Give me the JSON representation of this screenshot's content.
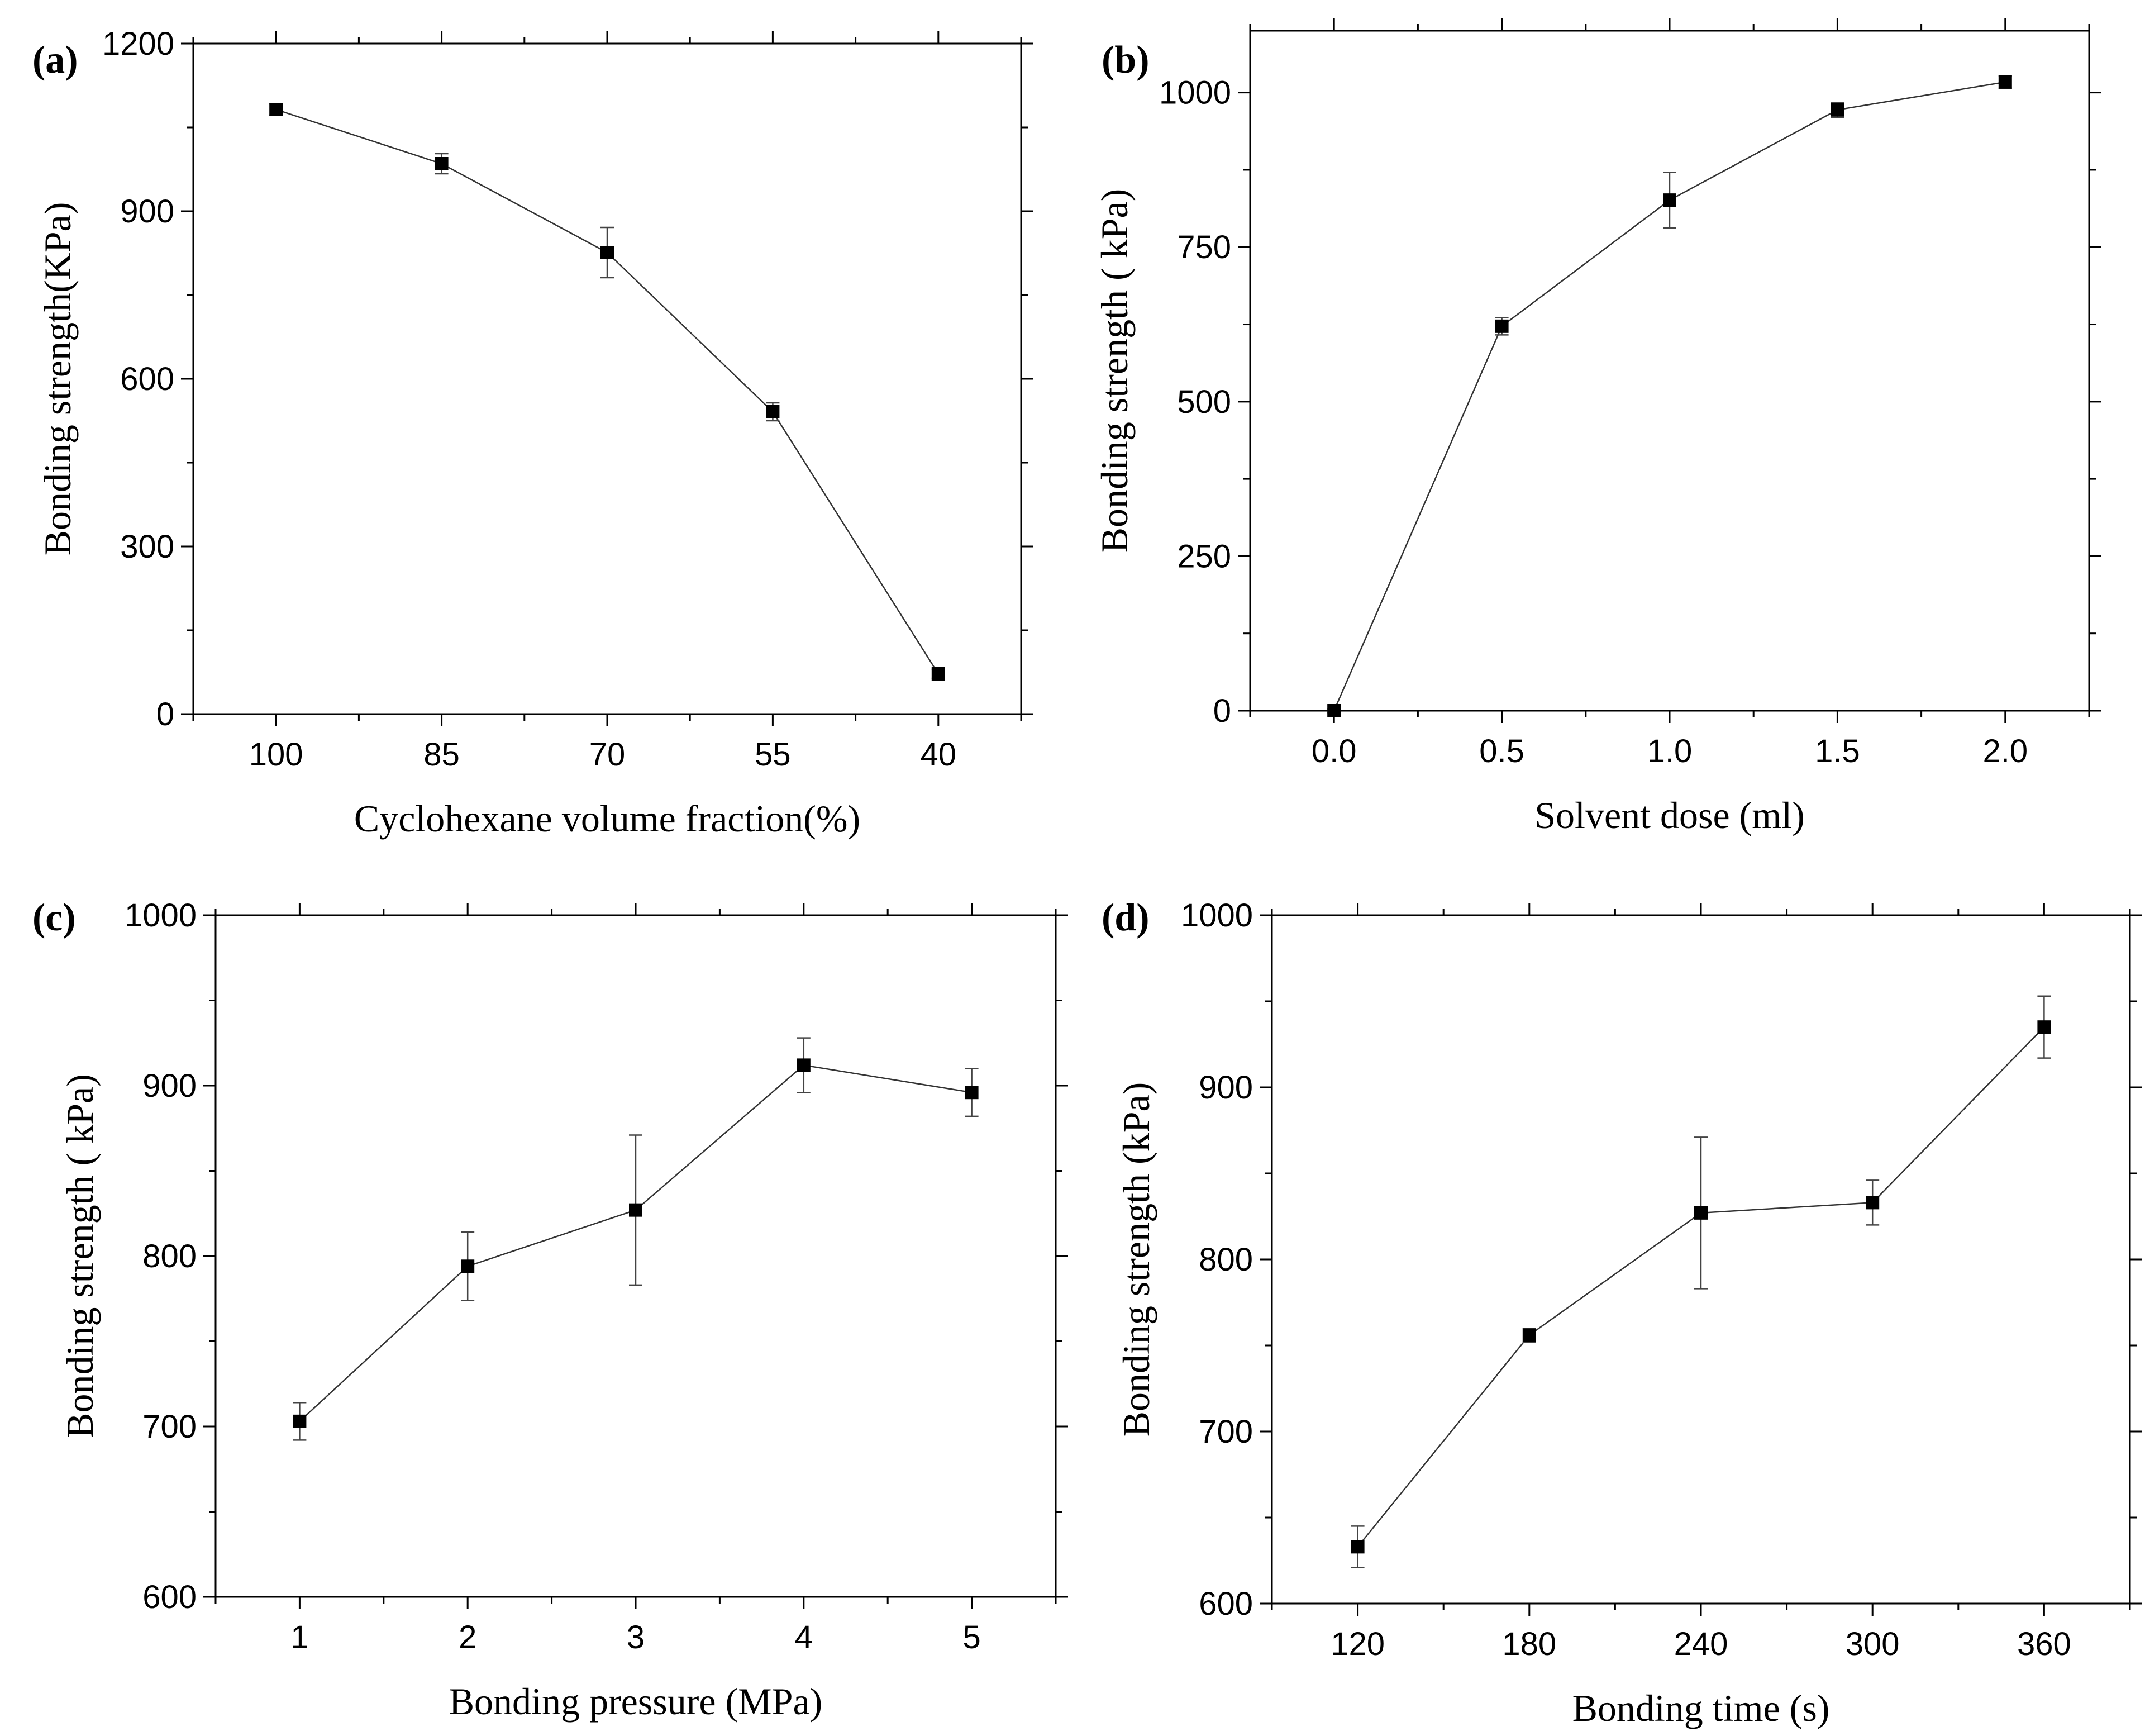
{
  "chart_data": [
    {
      "type": "line",
      "panel_label": "(a)",
      "xlabel": "Cyclohexane volume fraction(%)",
      "ylabel": "Bonding strength(KPa)",
      "x_is_category": true,
      "categories": [
        "100",
        "85",
        "70",
        "55",
        "40"
      ],
      "values": [
        1082,
        985,
        826,
        541,
        72
      ],
      "errors": [
        10,
        18,
        45,
        16,
        8
      ],
      "ylim": [
        0,
        1200
      ],
      "yticks": [
        0,
        300,
        600,
        900,
        1200
      ],
      "ytick_labels": [
        "0",
        "300",
        "600",
        "900",
        "1200"
      ],
      "y_minor_step": 150
    },
    {
      "type": "line",
      "panel_label": "(b)",
      "xlabel": "Solvent dose (ml)",
      "ylabel": "Bonding strength ( kPa)",
      "x_is_category": false,
      "x": [
        0.0,
        0.5,
        1.0,
        1.5,
        2.0
      ],
      "values": [
        0,
        622,
        826,
        972,
        1017
      ],
      "errors": [
        3,
        14,
        45,
        12,
        10
      ],
      "xlim": [
        -0.25,
        2.25
      ],
      "xticks": [
        0.0,
        0.5,
        1.0,
        1.5,
        2.0
      ],
      "xtick_labels": [
        "0.0",
        "0.5",
        "1.0",
        "1.5",
        "2.0"
      ],
      "ylim": [
        0,
        1100
      ],
      "yticks": [
        0,
        250,
        500,
        750,
        1000
      ],
      "ytick_labels": [
        "0",
        "250",
        "500",
        "750",
        "1000"
      ],
      "y_minor_step": 125
    },
    {
      "type": "line",
      "panel_label": "(c)",
      "xlabel": "Bonding pressure (MPa)",
      "ylabel": "Bonding strength ( kPa)",
      "x_is_category": false,
      "x": [
        1,
        2,
        3,
        4,
        5
      ],
      "values": [
        703,
        794,
        827,
        912,
        896
      ],
      "errors": [
        11,
        20,
        44,
        16,
        14
      ],
      "xlim": [
        0.5,
        5.5
      ],
      "xticks": [
        1,
        2,
        3,
        4,
        5
      ],
      "xtick_labels": [
        "1",
        "2",
        "3",
        "4",
        "5"
      ],
      "ylim": [
        600,
        1000
      ],
      "yticks": [
        600,
        700,
        800,
        900,
        1000
      ],
      "ytick_labels": [
        "600",
        "700",
        "800",
        "900",
        "1000"
      ],
      "y_minor_step": 50
    },
    {
      "type": "line",
      "panel_label": "(d)",
      "xlabel": "Bonding time (s)",
      "ylabel": "Bonding strength (kPa)",
      "x_is_category": false,
      "x": [
        120,
        180,
        240,
        300,
        360
      ],
      "values": [
        633,
        756,
        827,
        833,
        935
      ],
      "errors": [
        12,
        4,
        44,
        13,
        18
      ],
      "xlim": [
        90,
        390
      ],
      "xticks": [
        120,
        180,
        240,
        300,
        360
      ],
      "xtick_labels": [
        "120",
        "180",
        "240",
        "300",
        "360"
      ],
      "ylim": [
        600,
        1000
      ],
      "yticks": [
        600,
        700,
        800,
        900,
        1000
      ],
      "ytick_labels": [
        "600",
        "700",
        "800",
        "900",
        "1000"
      ],
      "y_minor_step": 50
    }
  ]
}
